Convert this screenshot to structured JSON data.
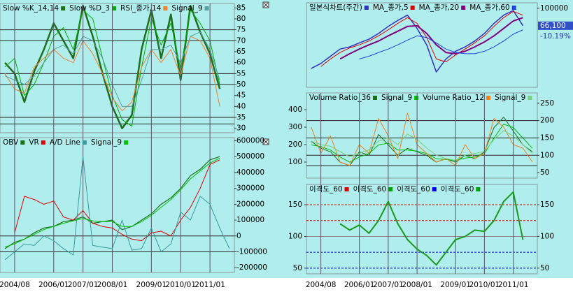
{
  "chart_data": [
    {
      "type": "line",
      "ylim": [
        28,
        87
      ],
      "yticks": [
        30,
        35,
        40,
        45,
        50,
        55,
        60,
        65,
        70,
        75,
        80,
        85
      ],
      "ref_lines": [
        75,
        70,
        55,
        50,
        35,
        32
      ],
      "series": [
        {
          "name": "Slow %K_14,14",
          "color": "#1f6f1f",
          "width": 2.5,
          "values": [
            60,
            55,
            42,
            56,
            66,
            78,
            70,
            62,
            86,
            72,
            55,
            40,
            30,
            36,
            66,
            84,
            62,
            82,
            52,
            86,
            74,
            64,
            48,
            null
          ]
        },
        {
          "name": "Slow %D_3",
          "color": "#00b000",
          "width": 1,
          "values": [
            58,
            62,
            45,
            50,
            60,
            72,
            76,
            66,
            84,
            80,
            62,
            45,
            34,
            31,
            58,
            80,
            68,
            78,
            57,
            84,
            78,
            70,
            50,
            null
          ]
        },
        {
          "name": "RSI_종가,14",
          "color": "#f08030",
          "width": 1,
          "values": [
            55,
            48,
            46,
            58,
            62,
            66,
            62,
            60,
            70,
            64,
            55,
            44,
            38,
            42,
            58,
            66,
            60,
            66,
            54,
            72,
            70,
            62,
            40,
            null
          ]
        },
        {
          "name": "Signal_9",
          "color": "#5aa0a0",
          "width": 1,
          "values": [
            54,
            52,
            50,
            54,
            60,
            66,
            68,
            64,
            72,
            70,
            62,
            50,
            40,
            40,
            52,
            66,
            66,
            68,
            60,
            72,
            74,
            66,
            52,
            null
          ]
        }
      ]
    },
    {
      "type": "line",
      "ylim": [
        -230000,
        620000
      ],
      "yticks": [
        -200000,
        -100000,
        0,
        100000,
        200000,
        300000,
        400000,
        500000,
        600000
      ],
      "ref_lines": [
        0,
        -100000
      ],
      "categories": [
        null,
        "2004/08",
        null,
        null,
        null,
        "2006/01",
        null,
        null,
        "2007/01",
        null,
        null,
        "2008/01",
        null,
        null,
        null,
        "2009/01",
        null,
        null,
        "2010/01",
        null,
        null,
        "2011/01",
        null,
        null
      ],
      "series": [
        {
          "name": "OBV",
          "color": "#1a6e1a",
          "width": 1.2,
          "values": [
            -80000,
            -40000,
            -20000,
            20000,
            50000,
            60000,
            90000,
            100000,
            120000,
            80000,
            90000,
            100000,
            40000,
            60000,
            100000,
            140000,
            200000,
            240000,
            300000,
            380000,
            420000,
            480000,
            500000,
            null
          ]
        },
        {
          "name": "VR",
          "color": "#e00000",
          "width": 1,
          "values": [
            null,
            20000,
            250000,
            230000,
            200000,
            220000,
            120000,
            100000,
            160000,
            80000,
            60000,
            50000,
            10000,
            -20000,
            -30000,
            20000,
            30000,
            0,
            100000,
            180000,
            300000,
            450000,
            480000,
            null
          ]
        },
        {
          "name": "A/D Line",
          "color": "#3a9a9a",
          "width": 1,
          "values": [
            -150000,
            -100000,
            -50000,
            -60000,
            0,
            -30000,
            -80000,
            -120000,
            500000,
            -60000,
            -70000,
            -80000,
            100000,
            -90000,
            -80000,
            50000,
            -100000,
            -50000,
            150000,
            100000,
            250000,
            200000,
            50000,
            -80000
          ]
        },
        {
          "name": "Signal_9",
          "color": "#00c000",
          "width": 1,
          "values": [
            -70000,
            -50000,
            -20000,
            10000,
            40000,
            60000,
            80000,
            95000,
            110000,
            95000,
            90000,
            90000,
            60000,
            60000,
            90000,
            130000,
            180000,
            230000,
            290000,
            360000,
            410000,
            460000,
            490000,
            null
          ]
        }
      ]
    },
    {
      "type": "line",
      "log": true,
      "ylim": [
        15300,
        114000
      ],
      "yticks": [
        100000
      ],
      "last_value": {
        "value": 66100,
        "label": "66,100"
      },
      "change": {
        "value": -10.19,
        "label": "-10.19%"
      },
      "series": [
        {
          "name": "일본식차트(주간)",
          "color": "#3030c0",
          "width": 1.5,
          "values": [
            24000,
            27000,
            32000,
            38000,
            40000,
            44000,
            48000,
            55000,
            65000,
            75000,
            85000,
            62000,
            42000,
            22000,
            30000,
            36000,
            40000,
            46000,
            55000,
            70000,
            85000,
            95000,
            66100,
            null
          ]
        },
        {
          "name": "MA_종가,5",
          "color": "#e00000",
          "width": 1,
          "values": [
            null,
            25000,
            30000,
            35000,
            39000,
            42000,
            46000,
            52000,
            60000,
            70000,
            80000,
            70000,
            50000,
            30000,
            28000,
            33000,
            38000,
            44000,
            52000,
            65000,
            80000,
            93000,
            85000,
            null
          ]
        },
        {
          "name": "MA_종가,20",
          "color": "#800080",
          "width": 2,
          "values": [
            null,
            null,
            null,
            30000,
            34000,
            38000,
            42000,
            46000,
            52000,
            58000,
            65000,
            66000,
            55000,
            42000,
            35000,
            34000,
            36000,
            40000,
            45000,
            52000,
            62000,
            74000,
            80000,
            null
          ]
        },
        {
          "name": "MA_종가,60",
          "color": "#2040e0",
          "width": 1,
          "values": [
            null,
            null,
            null,
            null,
            null,
            30000,
            32000,
            35000,
            38000,
            42000,
            47000,
            52000,
            50000,
            44000,
            38000,
            35000,
            34000,
            34000,
            36000,
            40000,
            46000,
            54000,
            60000,
            null
          ]
        }
      ]
    },
    {
      "type": "line",
      "ylim": [
        8,
        496
      ],
      "yticks": [
        100,
        200,
        300,
        400
      ],
      "y2lim": [
        34,
        280
      ],
      "y2ticks": [
        50,
        100,
        150,
        200,
        250
      ],
      "ref_lines": [
        200,
        150,
        100,
        70
      ],
      "ref_axis": "y2",
      "series": [
        {
          "name": "Volume Ratio_36",
          "color": "#1a6e1a",
          "width": 1,
          "axis": "y2",
          "values": [
            140,
            120,
            110,
            80,
            70,
            110,
            100,
            160,
            130,
            100,
            120,
            110,
            100,
            80,
            90,
            80,
            100,
            90,
            110,
            180,
            210,
            170,
            130,
            110
          ]
        },
        {
          "name": "Signal_9",
          "color": "#00c000",
          "width": 1,
          "axis": "y2",
          "values": [
            130,
            125,
            115,
            95,
            80,
            95,
            105,
            130,
            135,
            115,
            115,
            112,
            105,
            90,
            88,
            85,
            92,
            95,
            105,
            150,
            190,
            180,
            150,
            120
          ]
        },
        {
          "name": "Volume Ratio_12",
          "color": "#f08020",
          "width": 1,
          "values": [
            300,
            150,
            250,
            100,
            80,
            200,
            150,
            350,
            250,
            120,
            380,
            200,
            150,
            100,
            120,
            80,
            200,
            120,
            150,
            350,
            300,
            200,
            180,
            100
          ]
        },
        {
          "name": "Signal_9",
          "color": "#7ad07a",
          "width": 1,
          "values": [
            220,
            200,
            190,
            160,
            130,
            150,
            170,
            220,
            240,
            200,
            260,
            230,
            180,
            140,
            120,
            110,
            140,
            150,
            160,
            230,
            280,
            250,
            200,
            150
          ]
        }
      ]
    },
    {
      "type": "line",
      "ylim": [
        41,
        182
      ],
      "yticks": [
        50,
        100,
        150
      ],
      "y2lim": [
        41,
        182
      ],
      "y2ticks": [
        50,
        100,
        150
      ],
      "ref_lines": [
        {
          "value": 150,
          "color": "#e00000"
        },
        {
          "value": 125,
          "color": "#e00000"
        },
        {
          "value": 100,
          "color": "#888888"
        },
        {
          "value": 75,
          "color": "#0000e0"
        },
        {
          "value": 50,
          "color": "#0000e0"
        }
      ],
      "legend": [
        {
          "name": "이격도_60",
          "color": "#e00000"
        },
        {
          "name": "이격도_60",
          "color": "#00a000"
        },
        {
          "name": "이격도_60",
          "color": "#0000e0"
        },
        {
          "name": "이격도_60",
          "color": "#00a000"
        }
      ],
      "categories": [
        null,
        "2004/08",
        null,
        null,
        null,
        "2006/01",
        null,
        null,
        "2007/01",
        null,
        null,
        "2008/01",
        null,
        null,
        null,
        "2009/01",
        null,
        null,
        "2010/01",
        null,
        null,
        "2011/01",
        null,
        null
      ],
      "series": [
        {
          "color": "#1a9a1a",
          "width": 2,
          "values": [
            null,
            null,
            null,
            120,
            110,
            118,
            105,
            125,
            155,
            120,
            95,
            80,
            70,
            55,
            75,
            95,
            100,
            110,
            108,
            125,
            155,
            170,
            95,
            null
          ]
        }
      ]
    }
  ]
}
